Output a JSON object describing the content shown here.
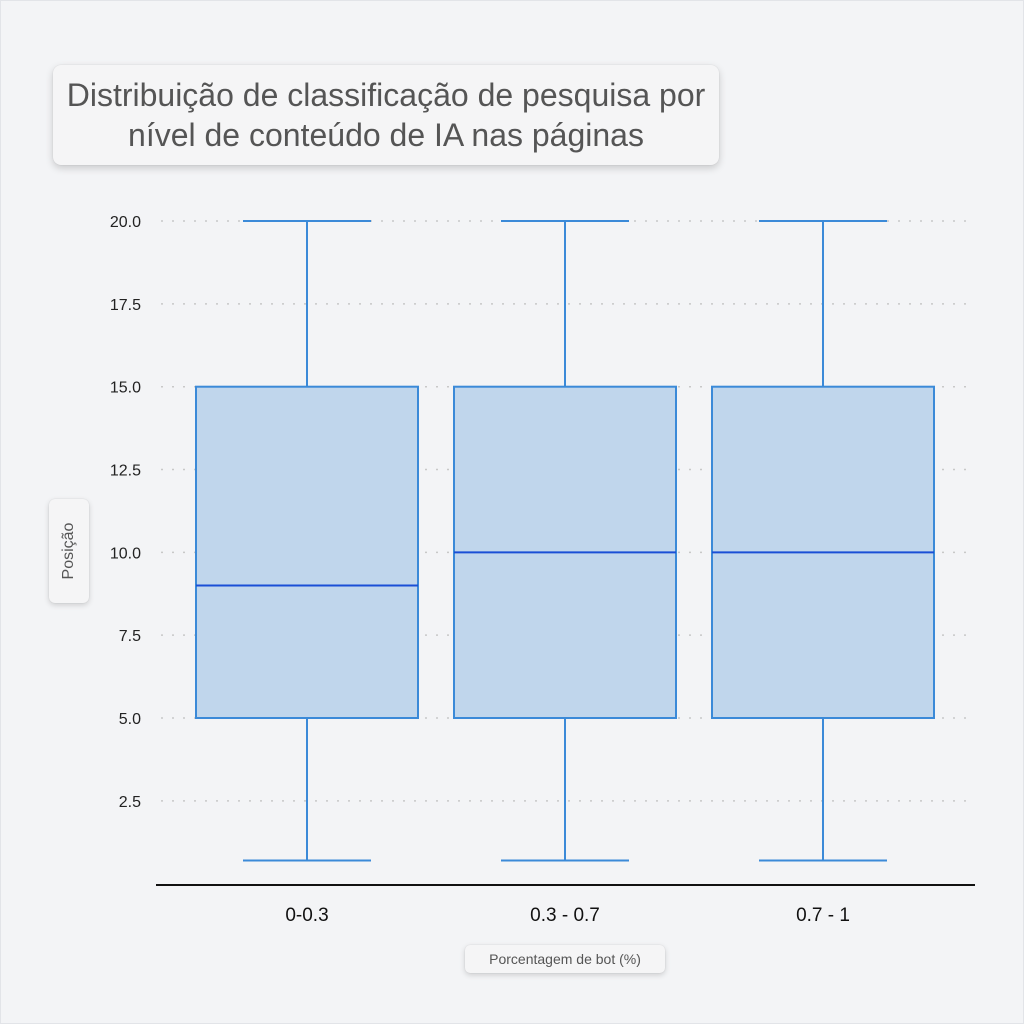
{
  "chart_data": {
    "type": "box",
    "title": "Distribuição de classificação de pesquisa por nível de conteúdo de IA nas páginas",
    "xlabel": "Porcentagem de bot (%)",
    "ylabel": "Posição",
    "categories": [
      "0-0.3",
      "0.3 - 0.7",
      "0.7 - 1"
    ],
    "boxes": [
      {
        "category": "0-0.3",
        "whisker_low": 0.7,
        "q1": 5.0,
        "median": 9.0,
        "q3": 15.0,
        "whisker_high": 20.0
      },
      {
        "category": "0.3 - 0.7",
        "whisker_low": 0.7,
        "q1": 5.0,
        "median": 10.0,
        "q3": 15.0,
        "whisker_high": 20.0
      },
      {
        "category": "0.7 - 1",
        "whisker_low": 0.7,
        "q1": 5.0,
        "median": 10.0,
        "q3": 15.0,
        "whisker_high": 20.0
      }
    ],
    "yticks": [
      "2.5",
      "5.0",
      "7.5",
      "10.0",
      "12.5",
      "15.0",
      "17.5",
      "20.0"
    ],
    "grid": "horizontal-dotted",
    "colors": {
      "box_fill": "#c0d6ec",
      "box_stroke": "#3b8ad8",
      "median": "#1a4fd6",
      "grid": "#c8c8c8",
      "axis": "#111111"
    }
  }
}
